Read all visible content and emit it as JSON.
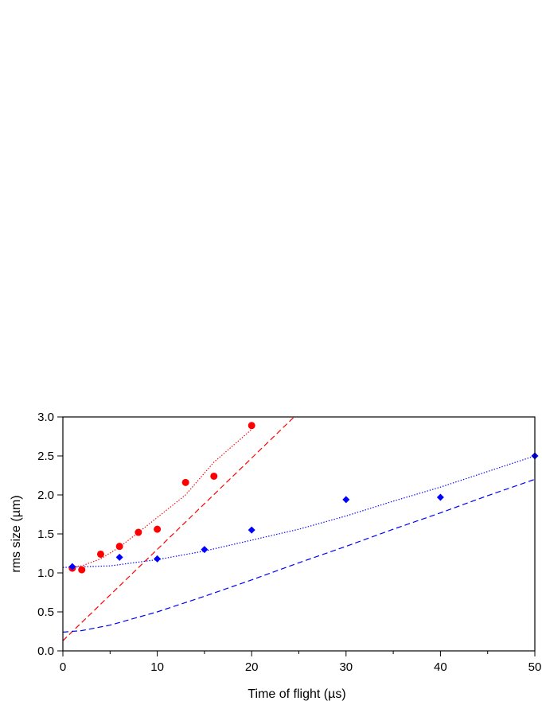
{
  "chart_data": {
    "type": "scatter",
    "xlabel": "Time of flight (µs)",
    "ylabel": "rms size (µm)",
    "xlim": [
      0,
      50
    ],
    "ylim": [
      0,
      3.0
    ],
    "x_ticks": [
      0,
      10,
      20,
      30,
      40,
      50
    ],
    "y_ticks": [
      0.0,
      0.5,
      1.0,
      1.5,
      2.0,
      2.5,
      3.0
    ],
    "x_tick_labels": [
      "0",
      "10",
      "20",
      "30",
      "40",
      "50"
    ],
    "y_tick_labels": [
      "0.0",
      "0.5",
      "1.0",
      "1.5",
      "2.0",
      "2.5",
      "3.0"
    ],
    "grid": false,
    "series": [
      {
        "kind": "points",
        "marker": "circle",
        "color": "#ff0000",
        "x": [
          1,
          2,
          4,
          6,
          8,
          10,
          13,
          16,
          20
        ],
        "y": [
          1.06,
          1.04,
          1.24,
          1.34,
          1.52,
          1.56,
          2.16,
          2.24,
          2.89
        ]
      },
      {
        "kind": "points",
        "marker": "diamond",
        "color": "#0000ff",
        "x": [
          1,
          6,
          10,
          15,
          20,
          30,
          40,
          50
        ],
        "y": [
          1.08,
          1.2,
          1.18,
          1.3,
          1.55,
          1.94,
          1.97,
          2.5
        ]
      },
      {
        "kind": "line",
        "style": "dotted",
        "color": "#ff0000",
        "x": [
          1,
          2,
          4,
          6,
          8,
          10,
          13,
          16,
          20
        ],
        "y": [
          1.08,
          1.09,
          1.18,
          1.33,
          1.52,
          1.71,
          2.0,
          2.42,
          2.84
        ]
      },
      {
        "kind": "line",
        "style": "dashed",
        "color": "#ff0000",
        "x": [
          0,
          24.5
        ],
        "y": [
          0.13,
          3.0
        ]
      },
      {
        "kind": "line",
        "style": "dotted",
        "color": "#0000ff",
        "x": [
          0,
          5,
          10,
          15,
          20,
          25,
          30,
          35,
          40,
          45,
          50
        ],
        "y": [
          1.07,
          1.09,
          1.17,
          1.28,
          1.42,
          1.56,
          1.73,
          1.92,
          2.1,
          2.3,
          2.5
        ]
      },
      {
        "kind": "line",
        "style": "dashed",
        "color": "#0000ff",
        "x": [
          0,
          2,
          5,
          10,
          15,
          20,
          25,
          30,
          35,
          40,
          45,
          50
        ],
        "y": [
          0.24,
          0.26,
          0.33,
          0.5,
          0.7,
          0.91,
          1.13,
          1.34,
          1.56,
          1.77,
          1.99,
          2.2
        ]
      }
    ]
  }
}
